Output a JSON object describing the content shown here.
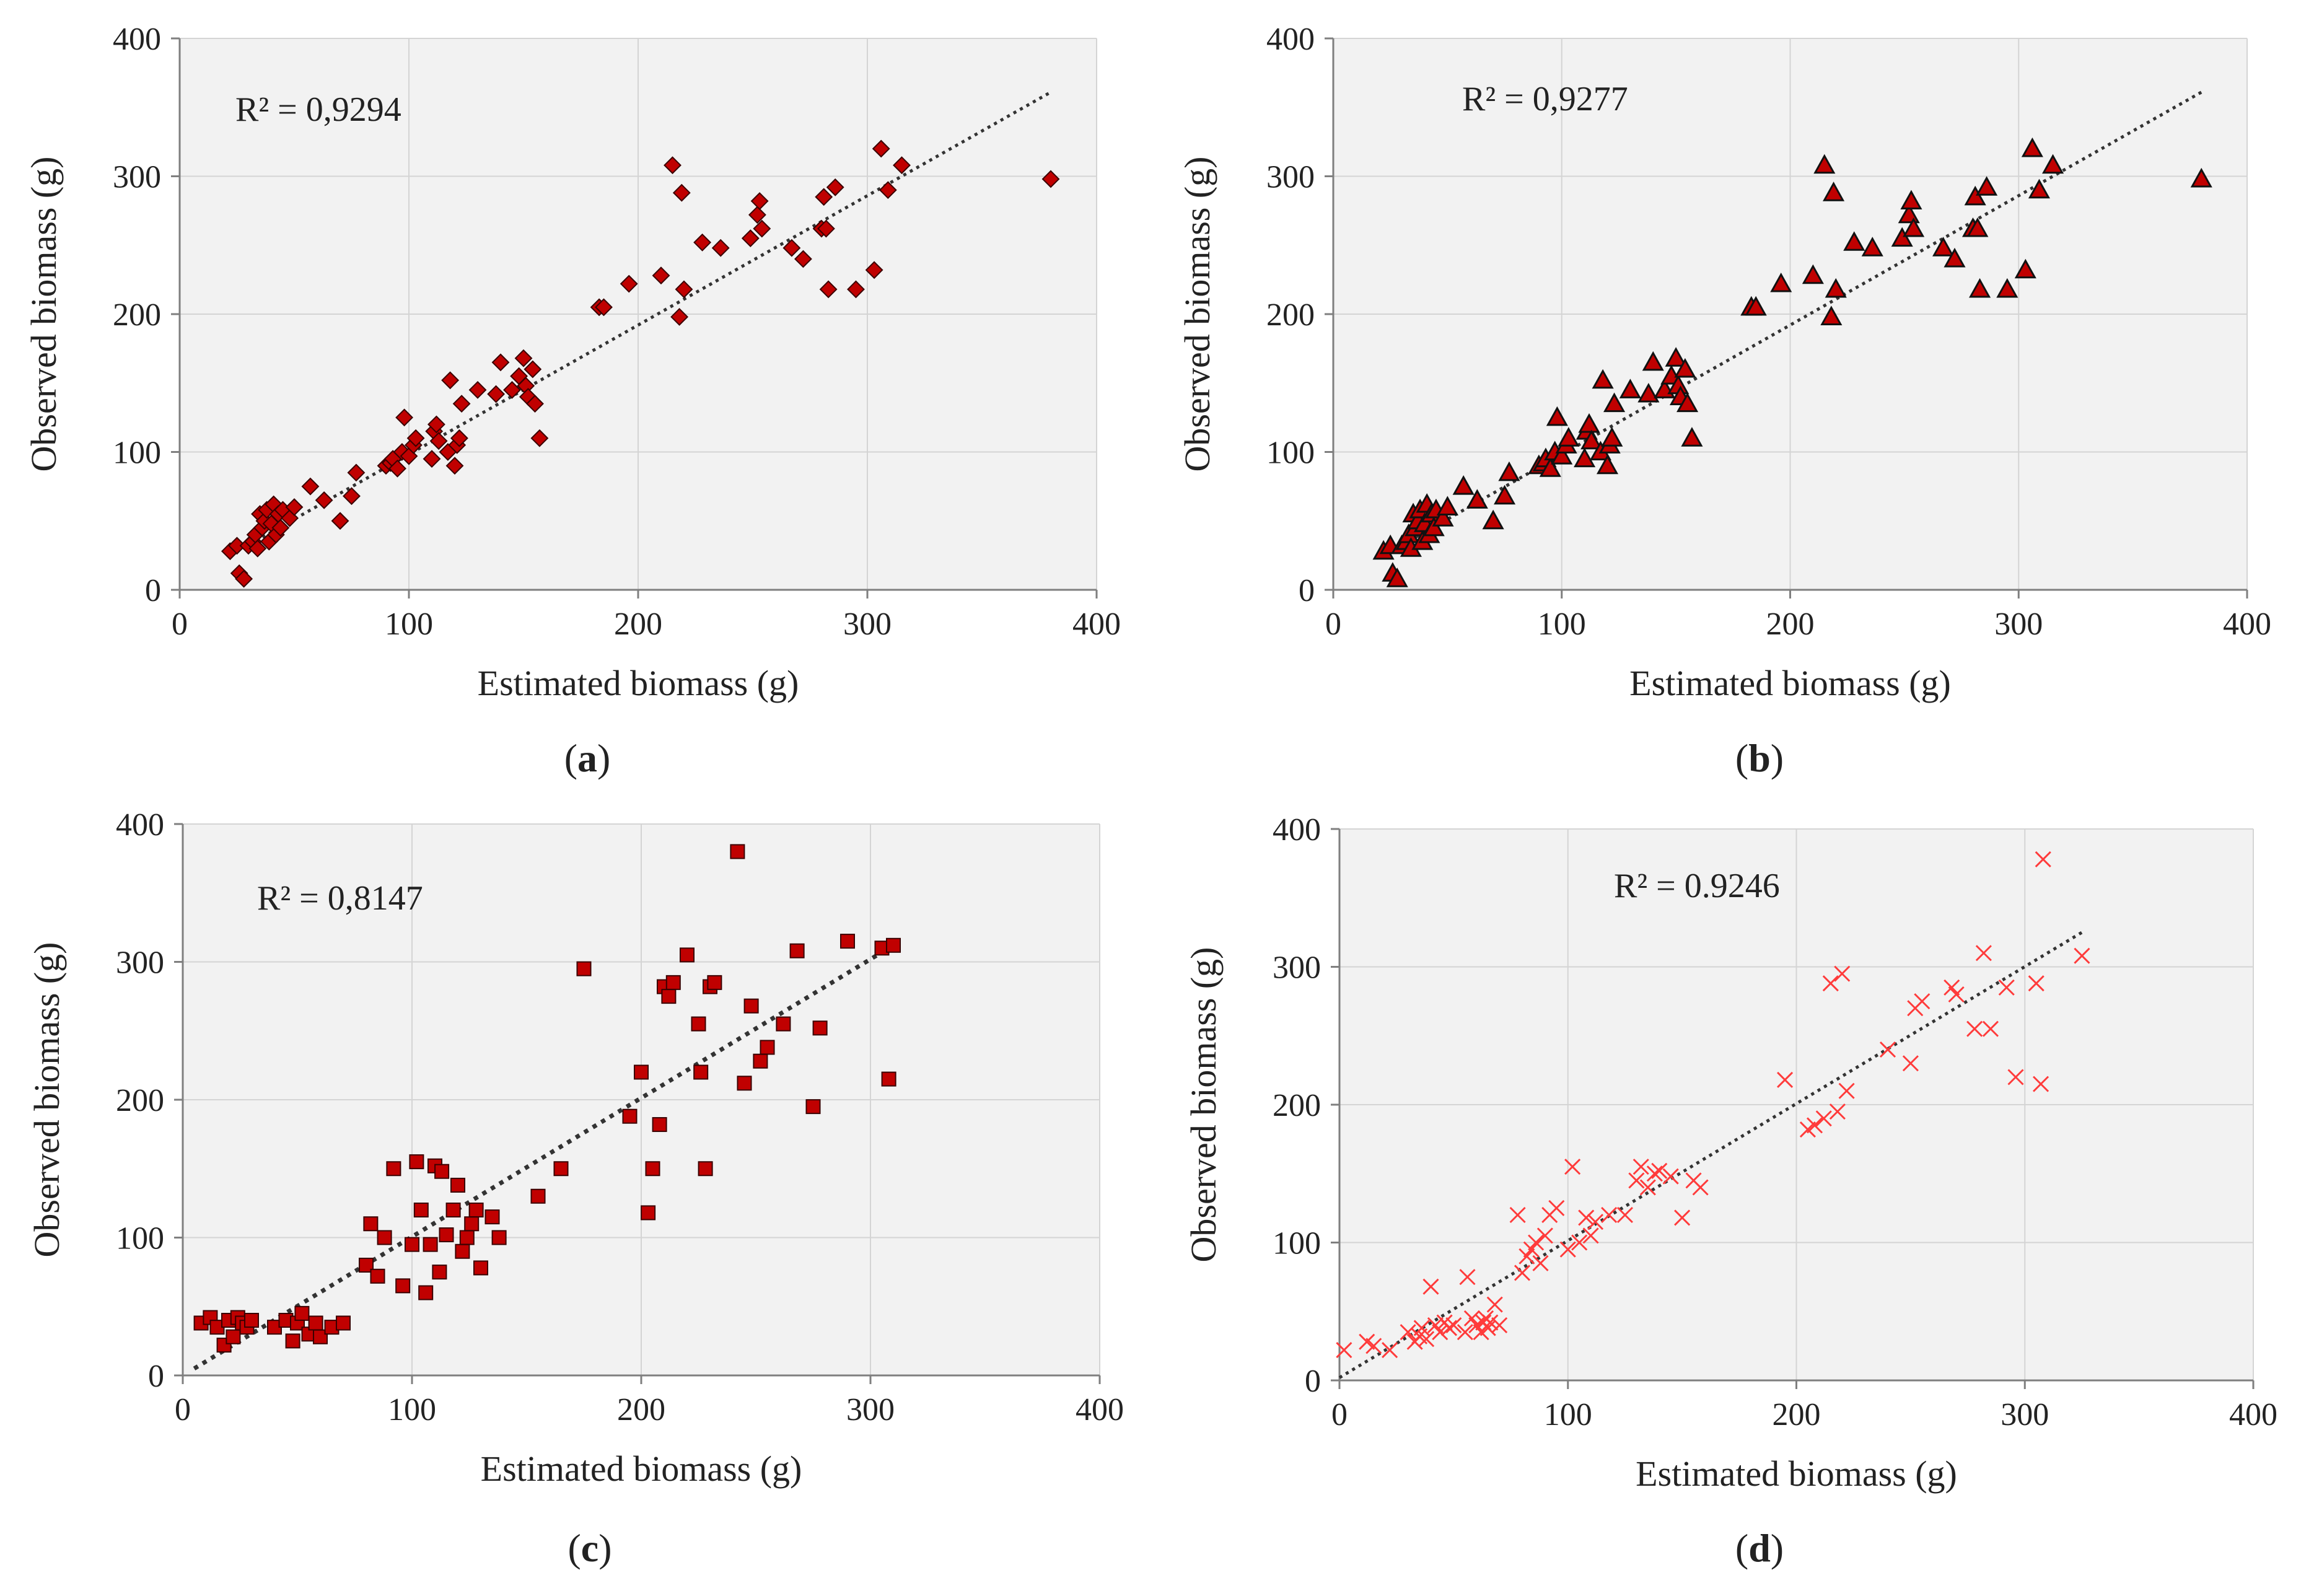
{
  "chart_data": [
    {
      "type": "scatter",
      "panel": "(a)",
      "marker": "diamond",
      "marker_color": "#c00000",
      "annotation": "R² = 0,9294",
      "xlabel": "Estimated biomass (g)",
      "ylabel": "Observed biomass (g)",
      "xlim": [
        0,
        400
      ],
      "ylim": [
        0,
        400
      ],
      "xticks": [
        "0",
        "100",
        "200",
        "300",
        "400"
      ],
      "yticks": [
        "0",
        "100",
        "200",
        "300",
        "400"
      ],
      "grid": true,
      "trendline": {
        "style": "dotted",
        "x": [
          22,
          380
        ],
        "y": [
          25,
          361
        ]
      },
      "x": [
        22,
        25,
        26,
        28,
        30,
        32,
        33,
        34,
        35,
        36,
        37,
        38,
        39,
        40,
        41,
        42,
        43,
        44,
        45,
        48,
        50,
        57,
        63,
        70,
        75,
        77,
        90,
        92,
        93,
        95,
        97,
        98,
        100,
        102,
        103,
        110,
        111,
        112,
        113,
        117,
        118,
        120,
        121,
        122,
        123,
        130,
        138,
        140,
        145,
        148,
        150,
        151,
        152,
        154,
        155,
        157,
        183,
        185,
        196,
        210,
        215,
        218,
        219,
        220,
        228,
        236,
        249,
        252,
        253,
        254,
        267,
        272,
        280,
        281,
        282,
        283,
        286,
        295,
        303,
        306,
        309,
        315,
        380
      ],
      "y": [
        28,
        32,
        12,
        8,
        32,
        35,
        40,
        30,
        55,
        45,
        50,
        58,
        35,
        48,
        62,
        40,
        55,
        45,
        58,
        52,
        60,
        75,
        65,
        50,
        68,
        85,
        90,
        92,
        95,
        88,
        100,
        125,
        97,
        105,
        110,
        95,
        115,
        120,
        108,
        100,
        152,
        90,
        105,
        110,
        135,
        145,
        142,
        165,
        145,
        155,
        168,
        148,
        140,
        160,
        135,
        110,
        205,
        205,
        222,
        228,
        308,
        198,
        288,
        218,
        252,
        248,
        255,
        272,
        282,
        262,
        248,
        240,
        262,
        285,
        262,
        218,
        292,
        218,
        232,
        320,
        290,
        308,
        298
      ]
    },
    {
      "type": "scatter",
      "panel": "(b)",
      "marker": "triangle",
      "marker_color": "#c00000",
      "annotation": "R² = 0,9277",
      "xlabel": "Estimated biomass (g)",
      "ylabel": "Observed biomass (g)",
      "xlim": [
        0,
        400
      ],
      "ylim": [
        0,
        400
      ],
      "xticks": [
        "0",
        "100",
        "200",
        "300",
        "400"
      ],
      "yticks": [
        "0",
        "100",
        "200",
        "300",
        "400"
      ],
      "grid": true,
      "trendline": {
        "style": "dotted",
        "x": [
          22,
          380
        ],
        "y": [
          25,
          361
        ]
      },
      "x": [
        22,
        25,
        26,
        28,
        30,
        32,
        33,
        34,
        35,
        36,
        37,
        38,
        39,
        40,
        41,
        42,
        43,
        44,
        45,
        48,
        50,
        57,
        63,
        70,
        75,
        77,
        90,
        92,
        93,
        95,
        97,
        98,
        100,
        102,
        103,
        110,
        111,
        112,
        113,
        117,
        118,
        120,
        121,
        122,
        123,
        130,
        138,
        140,
        145,
        148,
        150,
        151,
        152,
        154,
        155,
        157,
        183,
        185,
        196,
        210,
        215,
        218,
        219,
        220,
        228,
        236,
        249,
        252,
        253,
        254,
        267,
        272,
        280,
        281,
        282,
        283,
        286,
        295,
        303,
        306,
        309,
        315,
        380
      ],
      "y": [
        28,
        32,
        12,
        8,
        32,
        35,
        40,
        30,
        55,
        45,
        50,
        58,
        35,
        48,
        62,
        40,
        55,
        45,
        58,
        52,
        60,
        75,
        65,
        50,
        68,
        85,
        90,
        92,
        95,
        88,
        100,
        125,
        97,
        105,
        110,
        95,
        115,
        120,
        108,
        100,
        152,
        90,
        105,
        110,
        135,
        145,
        142,
        165,
        145,
        155,
        168,
        148,
        140,
        160,
        135,
        110,
        205,
        205,
        222,
        228,
        308,
        198,
        288,
        218,
        252,
        248,
        255,
        272,
        282,
        262,
        248,
        240,
        262,
        285,
        262,
        218,
        292,
        218,
        232,
        320,
        290,
        308,
        298
      ]
    },
    {
      "type": "scatter",
      "panel": "(c)",
      "marker": "square",
      "marker_color": "#c00000",
      "annotation": "R² = 0,8147",
      "xlabel": "Estimated biomass (g)",
      "ylabel": "Observed biomass (g)",
      "xlim": [
        0,
        400
      ],
      "ylim": [
        0,
        400
      ],
      "xticks": [
        "0",
        "100",
        "200",
        "300",
        "400"
      ],
      "yticks": [
        "0",
        "100",
        "200",
        "300",
        "400"
      ],
      "grid": true,
      "trendline": {
        "style": "dotted",
        "x": [
          5,
          310
        ],
        "y": [
          5,
          312
        ]
      },
      "x": [
        8,
        12,
        15,
        18,
        20,
        22,
        24,
        26,
        28,
        30,
        40,
        45,
        48,
        50,
        52,
        55,
        58,
        60,
        65,
        70,
        80,
        82,
        85,
        88,
        92,
        96,
        100,
        102,
        104,
        106,
        108,
        110,
        112,
        113,
        115,
        118,
        120,
        122,
        124,
        126,
        128,
        130,
        135,
        138,
        155,
        165,
        175,
        195,
        200,
        203,
        205,
        208,
        210,
        212,
        214,
        220,
        225,
        226,
        228,
        230,
        232,
        245,
        248,
        252,
        255,
        262,
        268,
        275,
        278,
        290,
        305,
        308,
        310,
        242
      ],
      "y": [
        38,
        42,
        35,
        22,
        40,
        28,
        42,
        38,
        35,
        40,
        35,
        40,
        25,
        38,
        45,
        30,
        38,
        28,
        35,
        38,
        80,
        110,
        72,
        100,
        150,
        65,
        95,
        155,
        120,
        60,
        95,
        152,
        75,
        148,
        102,
        120,
        138,
        90,
        100,
        110,
        120,
        78,
        115,
        100,
        130,
        150,
        295,
        188,
        220,
        118,
        150,
        182,
        282,
        275,
        285,
        305,
        255,
        220,
        150,
        282,
        285,
        212,
        268,
        228,
        238,
        255,
        308,
        195,
        252,
        315,
        310,
        215,
        312,
        380
      ]
    },
    {
      "type": "scatter",
      "panel": "(d)",
      "marker": "x",
      "marker_color": "#ff3b3b",
      "annotation": "R² = 0.9246",
      "xlabel": "Estimated biomass (g)",
      "ylabel": "Observed biomass (g)",
      "xlim": [
        0,
        400
      ],
      "ylim": [
        0,
        400
      ],
      "xticks": [
        "0",
        "100",
        "200",
        "300",
        "400"
      ],
      "yticks": [
        "0",
        "100",
        "200",
        "300",
        "400"
      ],
      "grid": true,
      "trendline": {
        "style": "dotted",
        "x": [
          0,
          325
        ],
        "y": [
          2,
          325
        ]
      },
      "x": [
        2,
        12,
        15,
        22,
        30,
        33,
        35,
        36,
        38,
        40,
        42,
        44,
        46,
        48,
        50,
        55,
        56,
        58,
        60,
        62,
        63,
        64,
        65,
        66,
        68,
        70,
        78,
        80,
        82,
        84,
        86,
        88,
        90,
        92,
        95,
        100,
        102,
        105,
        108,
        110,
        112,
        118,
        125,
        130,
        132,
        135,
        138,
        140,
        145,
        150,
        155,
        158,
        195,
        205,
        208,
        212,
        215,
        218,
        220,
        222,
        240,
        250,
        252,
        255,
        268,
        270,
        278,
        282,
        285,
        292,
        296,
        305,
        307,
        325,
        308
      ],
      "y": [
        22,
        28,
        25,
        22,
        35,
        28,
        32,
        38,
        30,
        68,
        40,
        35,
        42,
        38,
        40,
        35,
        75,
        45,
        40,
        35,
        42,
        45,
        38,
        42,
        55,
        40,
        120,
        78,
        90,
        95,
        100,
        85,
        105,
        120,
        125,
        95,
        155,
        100,
        118,
        105,
        115,
        120,
        120,
        145,
        155,
        140,
        150,
        152,
        148,
        118,
        145,
        140,
        218,
        182,
        185,
        190,
        288,
        195,
        295,
        210,
        240,
        230,
        270,
        275,
        285,
        280,
        255,
        310,
        255,
        285,
        220,
        288,
        215,
        308,
        378
      ]
    }
  ]
}
